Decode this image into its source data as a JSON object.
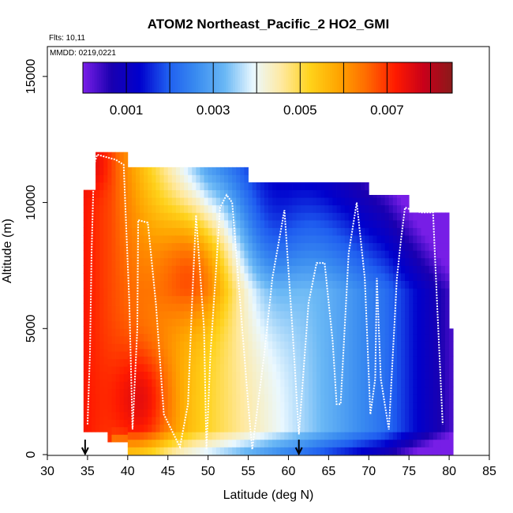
{
  "chart_data": {
    "type": "heatmap",
    "title": "ATOM2 Northeast_Pacific_2 HO2_GMI",
    "flights_text": "Flts: 10,11",
    "dates_text": "MMDD: 0219,0221",
    "xlabel": "Latitude (deg N)",
    "ylabel": "Altitude (m)",
    "xlim": [
      30,
      85
    ],
    "ylim": [
      0,
      17500
    ],
    "x_ticks": [
      30,
      35,
      40,
      45,
      50,
      55,
      60,
      65,
      70,
      75,
      80,
      85
    ],
    "y_ticks": [
      0,
      5000,
      10000,
      15000
    ],
    "colorbar": {
      "range": [
        0,
        0.0085
      ],
      "tick_values": [
        0.001,
        0.003,
        0.005,
        0.007
      ],
      "tick_labels": [
        "0.001",
        "0.003",
        "0.005",
        "0.007"
      ],
      "colors": [
        "#7a1fe8",
        "#1a00b0",
        "#0000cd",
        "#1f5ef0",
        "#3a8cf0",
        "#6ab8f5",
        "#eaf8ff",
        "#ffe9a0",
        "#ffd21a",
        "#ffa500",
        "#ff6a00",
        "#ff1a00",
        "#c8001a",
        "#8b1a1a"
      ]
    },
    "arrows_at_latitude": [
      34.7,
      61.3
    ],
    "flight_track": [
      [
        35.0,
        1200
      ],
      [
        35.3,
        4000
      ],
      [
        35.5,
        8000
      ],
      [
        35.8,
        11500
      ],
      [
        36.2,
        11900
      ],
      [
        38.5,
        11700
      ],
      [
        39.5,
        11500
      ],
      [
        40.2,
        6000
      ],
      [
        40.6,
        1000
      ],
      [
        41.2,
        5000
      ],
      [
        41.3,
        9300
      ],
      [
        42.5,
        9200
      ],
      [
        43.5,
        6000
      ],
      [
        44.5,
        1600
      ],
      [
        46.5,
        300
      ],
      [
        47.5,
        2000
      ],
      [
        48.0,
        6000
      ],
      [
        48.5,
        9500
      ],
      [
        49.5,
        5000
      ],
      [
        49.8,
        200
      ],
      [
        50.3,
        4000
      ],
      [
        51.5,
        9800
      ],
      [
        52.3,
        10300
      ],
      [
        53.0,
        10000
      ],
      [
        54.0,
        6000
      ],
      [
        55.0,
        2000
      ],
      [
        55.5,
        200
      ],
      [
        57.0,
        4000
      ],
      [
        58.0,
        7000
      ],
      [
        59.5,
        9700
      ],
      [
        60.5,
        5000
      ],
      [
        61.3,
        800
      ],
      [
        62.5,
        6000
      ],
      [
        63.5,
        7600
      ],
      [
        64.5,
        7600
      ],
      [
        65.5,
        4500
      ],
      [
        66.0,
        2000
      ],
      [
        66.5,
        2000
      ],
      [
        67.5,
        8000
      ],
      [
        68.5,
        10000
      ],
      [
        69.5,
        7000
      ],
      [
        70.2,
        1600
      ],
      [
        70.8,
        3000
      ],
      [
        71.0,
        7000
      ],
      [
        71.5,
        3000
      ],
      [
        72.5,
        1000
      ],
      [
        73.5,
        7000
      ],
      [
        74.0,
        8500
      ],
      [
        74.5,
        9800
      ],
      [
        76.5,
        9600
      ],
      [
        78.0,
        9600
      ],
      [
        78.5,
        6000
      ],
      [
        79.2,
        1200
      ]
    ]
  }
}
